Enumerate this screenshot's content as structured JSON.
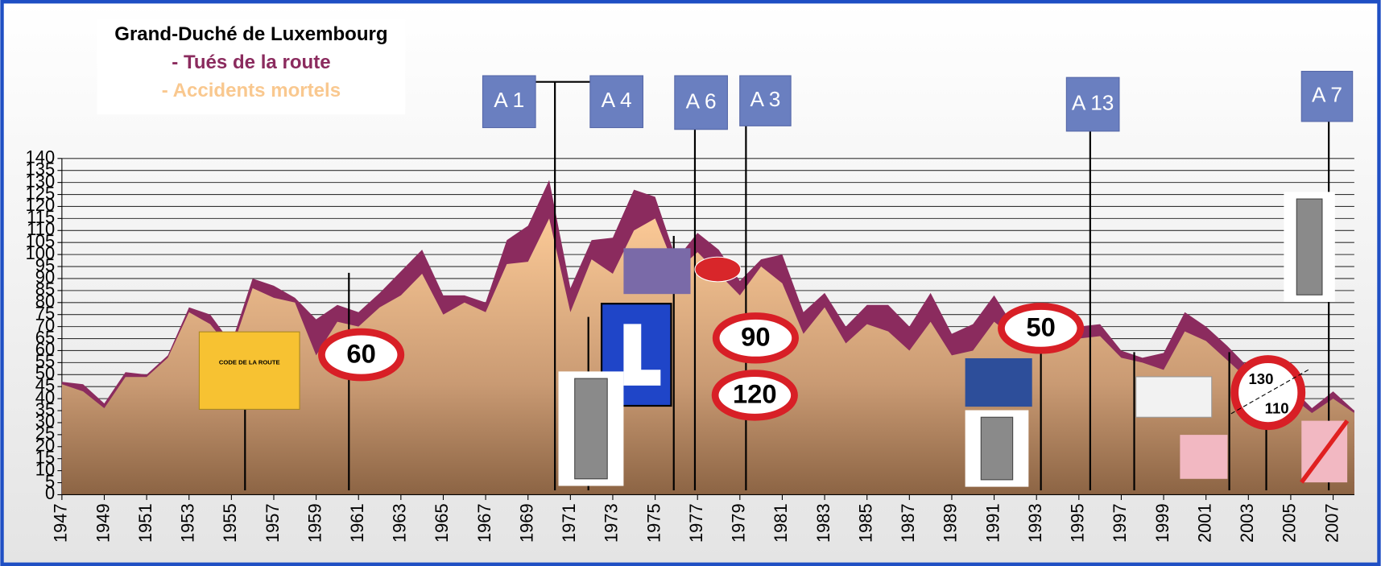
{
  "chart_data": {
    "type": "area",
    "title": "Grand-Duché de Luxembourg",
    "x": [
      1947,
      1948,
      1949,
      1950,
      1951,
      1952,
      1953,
      1954,
      1955,
      1956,
      1957,
      1958,
      1959,
      1960,
      1961,
      1962,
      1963,
      1964,
      1965,
      1966,
      1967,
      1968,
      1969,
      1970,
      1971,
      1972,
      1973,
      1974,
      1975,
      1976,
      1977,
      1978,
      1979,
      1980,
      1981,
      1982,
      1983,
      1984,
      1985,
      1986,
      1987,
      1988,
      1989,
      1990,
      1991,
      1992,
      1993,
      1994,
      1995,
      1996,
      1997,
      1998,
      1999,
      2000,
      2001,
      2002,
      2003,
      2004,
      2005,
      2006,
      2007,
      2008
    ],
    "series": [
      {
        "name": "- Tués de la route",
        "color": "#8b2b5e",
        "values": [
          47,
          46,
          38,
          51,
          50,
          58,
          78,
          75,
          63,
          90,
          87,
          82,
          73,
          79,
          76,
          84,
          93,
          102,
          83,
          83,
          80,
          106,
          112,
          131,
          86,
          106,
          107,
          127,
          124,
          98,
          109,
          102,
          89,
          98,
          100,
          76,
          84,
          70,
          79,
          79,
          70,
          84,
          67,
          71,
          83,
          69,
          76,
          69,
          70,
          71,
          60,
          57,
          59,
          76,
          70,
          62,
          53,
          50,
          45,
          36,
          43,
          35
        ]
      },
      {
        "name": "- Accidents mortels",
        "color": "#f9c88f",
        "values": [
          46,
          43,
          36,
          49,
          49,
          57,
          76,
          71,
          60,
          86,
          82,
          80,
          58,
          72,
          70,
          78,
          83,
          92,
          75,
          80,
          76,
          96,
          97,
          115,
          76,
          98,
          92,
          110,
          115,
          93,
          101,
          92,
          83,
          95,
          88,
          67,
          78,
          63,
          71,
          68,
          60,
          72,
          58,
          60,
          72,
          65,
          72,
          64,
          65,
          66,
          57,
          55,
          52,
          68,
          64,
          56,
          48,
          45,
          41,
          34,
          40,
          34
        ]
      }
    ],
    "xlim": [
      1947,
      2008
    ],
    "xticks": [
      1947,
      1949,
      1951,
      1953,
      1955,
      1957,
      1959,
      1961,
      1963,
      1965,
      1967,
      1969,
      1971,
      1973,
      1975,
      1977,
      1979,
      1981,
      1983,
      1985,
      1987,
      1989,
      1991,
      1993,
      1995,
      1997,
      1999,
      2001,
      2003,
      2005,
      2007
    ],
    "ylim": [
      0,
      140
    ],
    "yticks": [
      0,
      5,
      10,
      15,
      20,
      25,
      30,
      35,
      40,
      45,
      50,
      55,
      60,
      65,
      70,
      75,
      80,
      85,
      90,
      95,
      100,
      105,
      110,
      115,
      120,
      125,
      130,
      135,
      140
    ],
    "grid": true,
    "annotations": [
      "A 1",
      "A 4",
      "A 6",
      "A 3",
      "A 13",
      "A 7",
      "60",
      "90",
      "120",
      "50",
      "130",
      "110",
      "CODE DE LA ROUTE"
    ]
  }
}
